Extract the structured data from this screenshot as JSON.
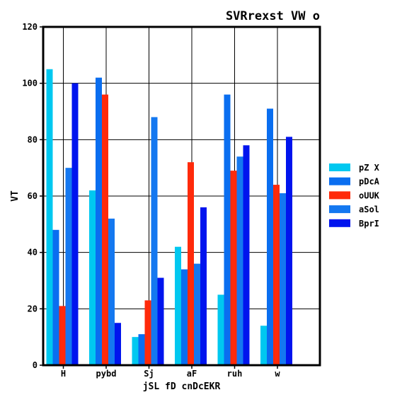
{
  "chart_data": {
    "type": "bar",
    "title": "SVRrexst VW o",
    "xlabel": "jSL fD cnDcEKR",
    "ylabel": "VT",
    "ylim": [
      0,
      120
    ],
    "yticks": [
      0,
      20,
      40,
      60,
      80,
      100,
      120
    ],
    "grid": true,
    "legend_position": "right",
    "categories": [
      "H",
      "pybd",
      "Sj",
      "aF",
      "ruh",
      "w"
    ],
    "series": [
      {
        "name": "pZ X",
        "color": "#00c8f0",
        "values": [
          105,
          62,
          10,
          42,
          25,
          14
        ]
      },
      {
        "name": "pDcA",
        "color": "#0a6ef0",
        "values": [
          48,
          102,
          11,
          34,
          96,
          91
        ]
      },
      {
        "name": "oUUK",
        "color": "#ff2a0a",
        "values": [
          21,
          96,
          23,
          72,
          69,
          64
        ]
      },
      {
        "name": "aSol",
        "color": "#1478f0",
        "values": [
          70,
          52,
          88,
          36,
          74,
          61
        ]
      },
      {
        "name": "BprI",
        "color": "#0014ee",
        "values": [
          100,
          15,
          31,
          56,
          78,
          81
        ]
      }
    ]
  }
}
